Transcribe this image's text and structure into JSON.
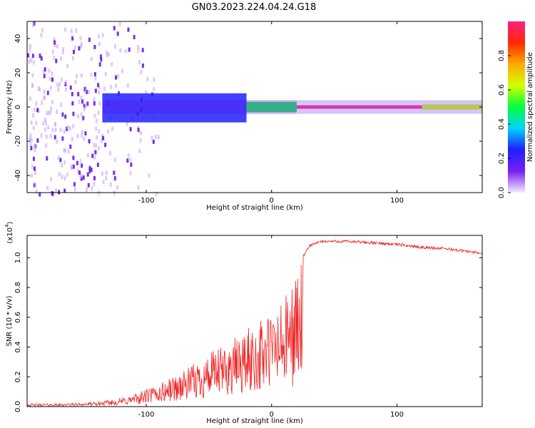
{
  "title": "GN03.2023.224.04.24.G18",
  "chart_data": [
    {
      "type": "heatmap",
      "xlabel": "Height of straight line (km)",
      "ylabel": "Frequency (Hz)",
      "xlim": [
        -195,
        168
      ],
      "ylim": [
        -50,
        50
      ],
      "x_ticks": [
        -100,
        0,
        100
      ],
      "x_tick_labels": [
        "-100",
        "0",
        "100"
      ],
      "y_ticks": [
        -40,
        -20,
        0,
        20,
        40
      ],
      "y_tick_labels": [
        "-40",
        "-20",
        "0",
        "20",
        "40"
      ],
      "colorbar": {
        "label": "Normalized spectral amplitude",
        "range": [
          0,
          1
        ],
        "ticks": [
          0.0,
          0.2,
          0.4,
          0.6,
          0.8
        ],
        "tick_labels": [
          "0.0",
          "0.2",
          "0.4",
          "0.6",
          "0.8"
        ],
        "colors": [
          "#f2ecfd",
          "#7a1ff0",
          "#2020ff",
          "#00d2ff",
          "#00ff3c",
          "#d2ff00",
          "#ffaa00",
          "#ff2a00",
          "#ff2080"
        ]
      },
      "regions": [
        {
          "x_range": [
            -195,
            -125
          ],
          "y_range": [
            -50,
            50
          ],
          "amplitude": 0.08
        },
        {
          "x_range": [
            -125,
            -90
          ],
          "y_range": [
            -50,
            50
          ],
          "amplitude": 0.03
        },
        {
          "x_range": [
            -135,
            -20
          ],
          "y_range": [
            -9,
            8
          ],
          "amplitude": 0.3
        },
        {
          "x_range": [
            -20,
            20
          ],
          "y_range": [
            -3,
            3
          ],
          "amplitude": 0.5
        },
        {
          "x_range": [
            20,
            120
          ],
          "y_range": [
            -1,
            1
          ],
          "amplitude": 0.95
        },
        {
          "x_range": [
            120,
            168
          ],
          "y_range": [
            -1.5,
            1.5
          ],
          "amplitude": 0.65
        }
      ],
      "grid": false
    },
    {
      "type": "line",
      "xlabel": "Height of straight line (km)",
      "ylabel": "SNR (10 * v/v)",
      "y_multiplier_label": "(x10",
      "y_multiplier_exp": "4",
      "y_multiplier_close": ")",
      "xlim": [
        -195,
        168
      ],
      "ylim": [
        0,
        1.15
      ],
      "x_ticks": [
        -100,
        0,
        100
      ],
      "x_tick_labels": [
        "-100",
        "0",
        "100"
      ],
      "y_ticks": [
        0.0,
        0.2,
        0.4,
        0.6,
        0.8,
        1.0
      ],
      "y_tick_labels": [
        "0.0",
        "0.2",
        "0.4",
        "0.6",
        "0.8",
        "1.0"
      ],
      "series": [
        {
          "color": "#ee2222",
          "x": [
            -195,
            -170,
            -140,
            -125,
            -110,
            -100,
            -90,
            -80,
            -70,
            -60,
            -50,
            -40,
            -30,
            -20,
            -10,
            0,
            10,
            20,
            30,
            40,
            60,
            80,
            100,
            120,
            140,
            168
          ],
          "y": [
            0.02,
            0.02,
            0.03,
            0.05,
            0.08,
            0.12,
            0.15,
            0.2,
            0.24,
            0.3,
            0.36,
            0.4,
            0.46,
            0.52,
            0.58,
            0.65,
            0.72,
            0.92,
            1.08,
            1.11,
            1.11,
            1.1,
            1.09,
            1.07,
            1.06,
            1.03
          ]
        }
      ],
      "grid": false
    }
  ]
}
